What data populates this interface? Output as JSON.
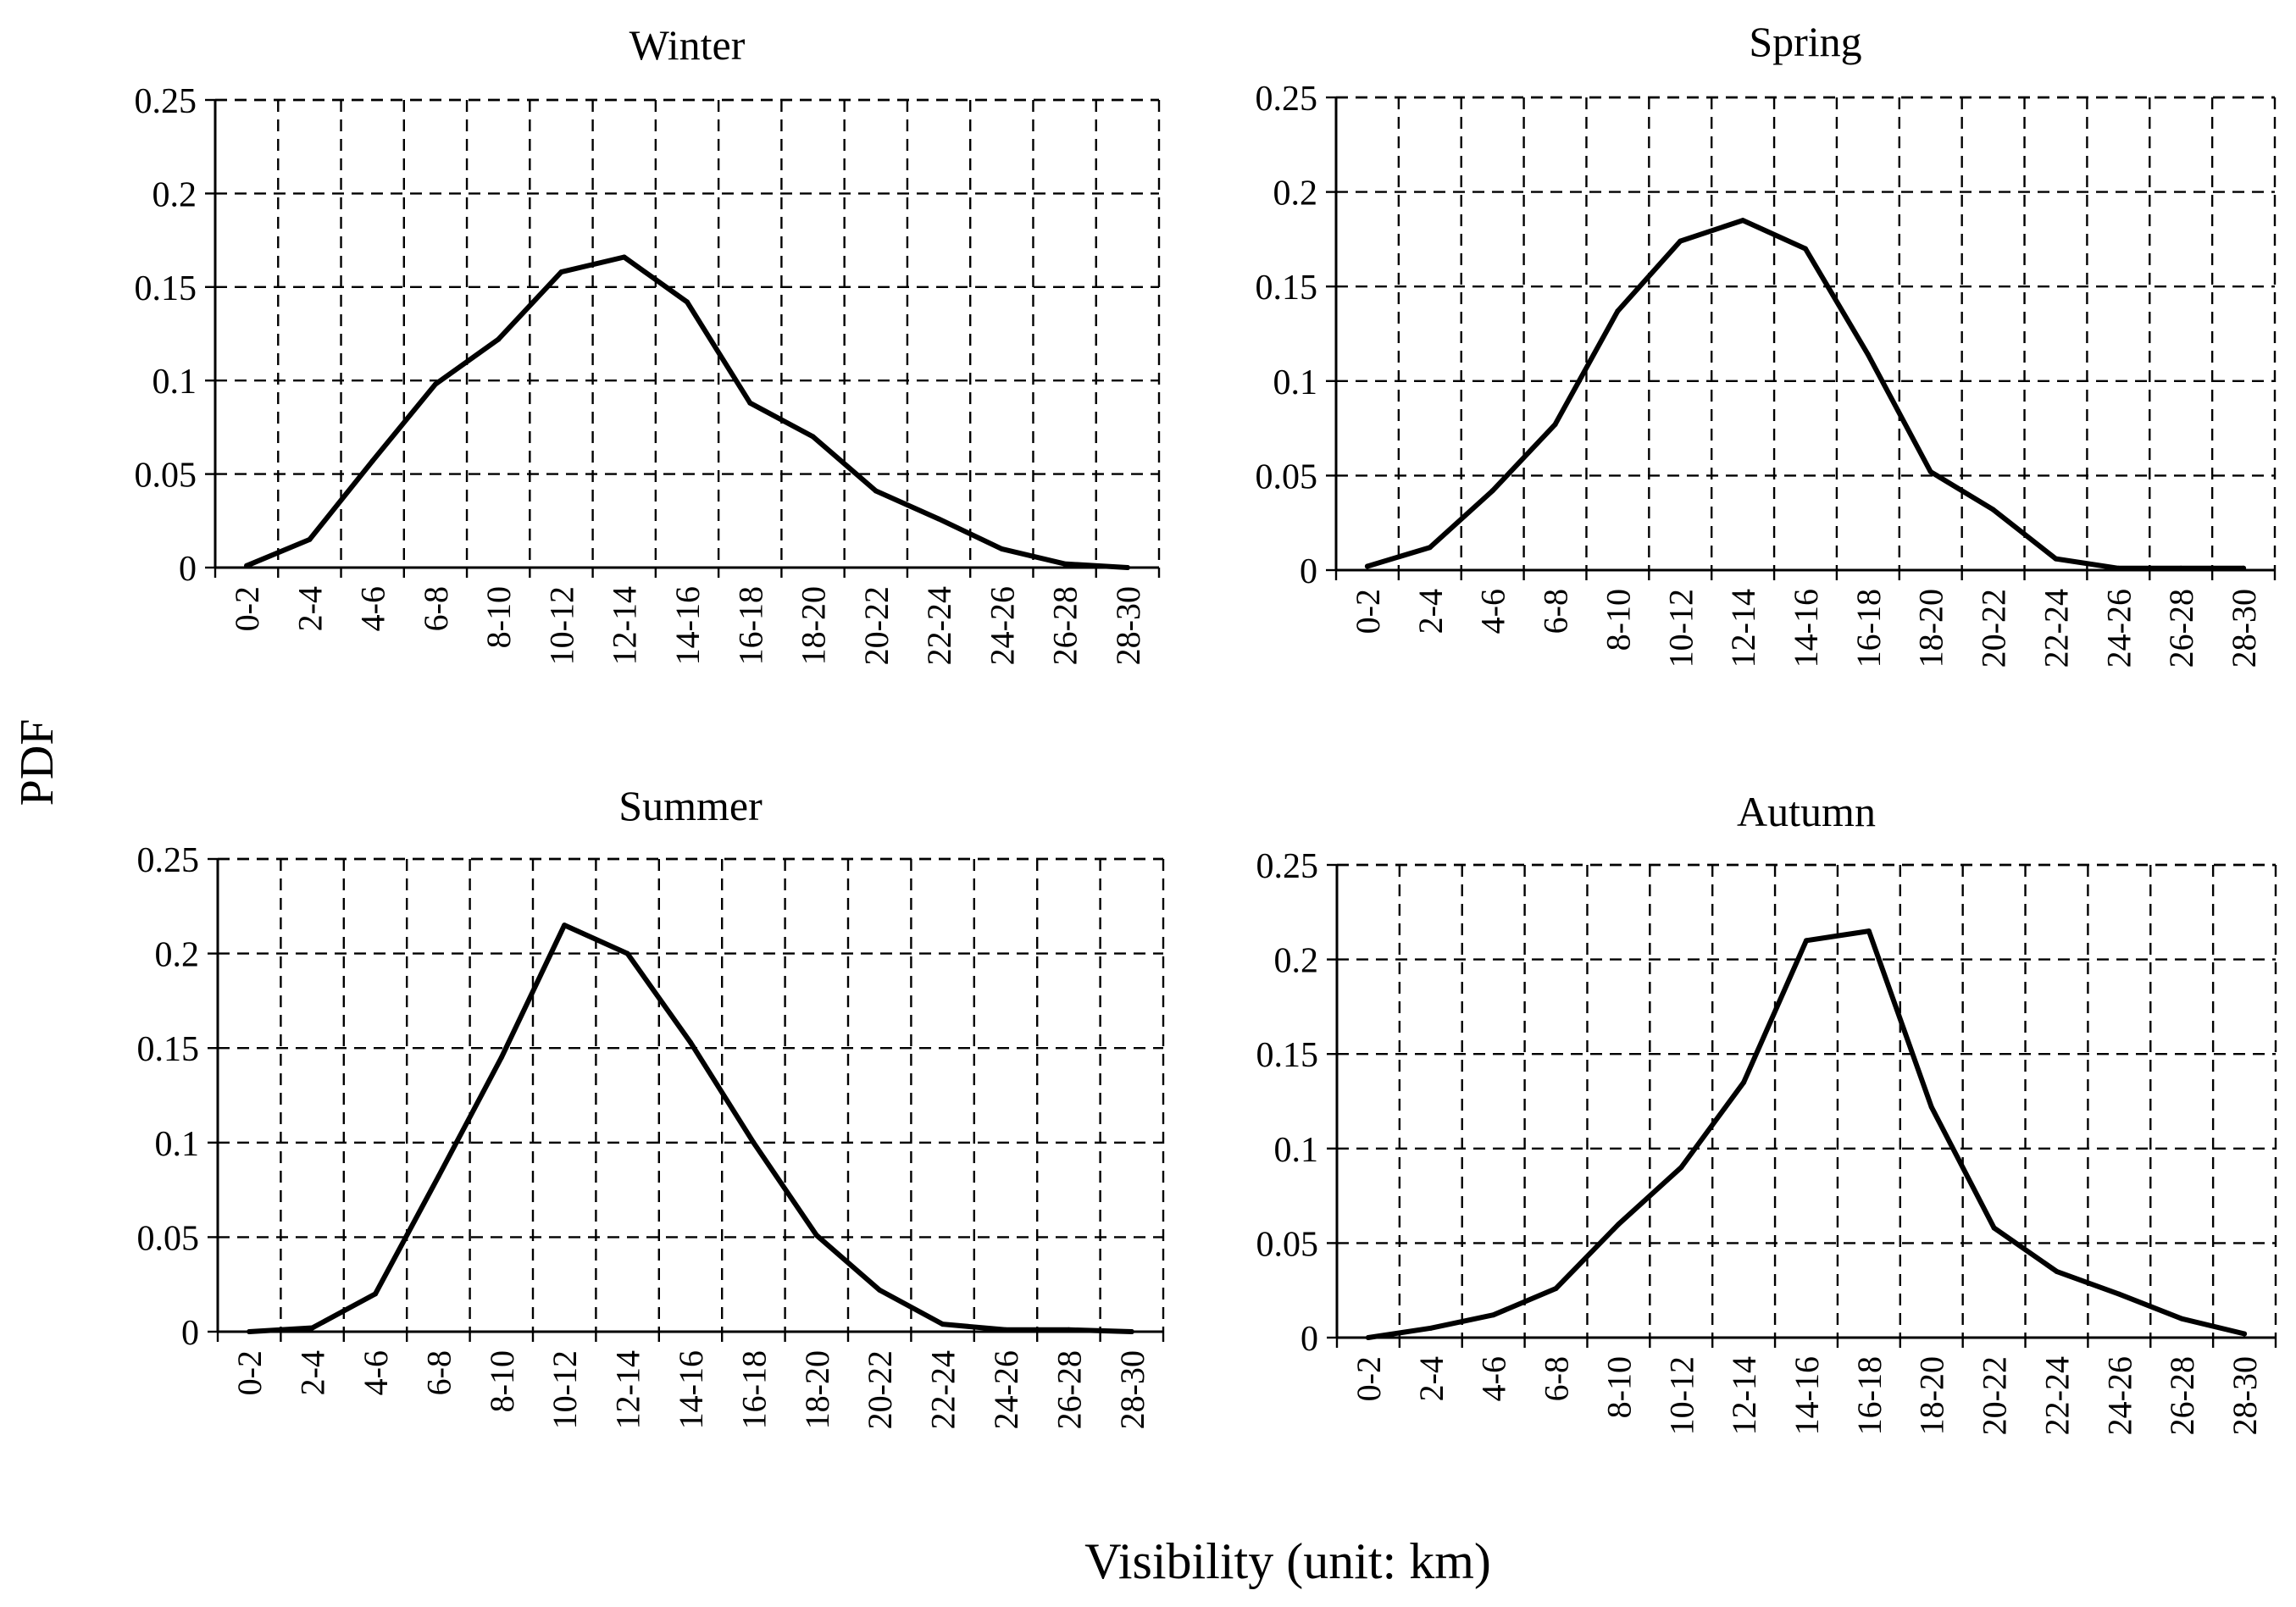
{
  "figure": {
    "ylabel": "PDF",
    "xlabel": "Visibility (unit: km)"
  },
  "chart_data": [
    {
      "type": "line",
      "title": "Winter",
      "categories": [
        "0-2",
        "2-4",
        "4-6",
        "6-8",
        "8-10",
        "10-12",
        "12-14",
        "14-16",
        "16-18",
        "18-20",
        "20-22",
        "22-24",
        "24-26",
        "26-28",
        "28-30"
      ],
      "values": [
        0.001,
        0.015,
        0.057,
        0.098,
        0.122,
        0.158,
        0.166,
        0.142,
        0.088,
        0.07,
        0.041,
        0.026,
        0.01,
        0.002,
        0.0
      ],
      "xlabel": "",
      "ylabel": "",
      "yticks": [
        "0",
        "0.05",
        "0.1",
        "0.15",
        "0.2",
        "0.25"
      ],
      "ylim": [
        0,
        0.25
      ],
      "grid": true
    },
    {
      "type": "line",
      "title": "Spring",
      "categories": [
        "0-2",
        "2-4",
        "4-6",
        "6-8",
        "8-10",
        "10-12",
        "12-14",
        "14-16",
        "16-18",
        "18-20",
        "20-22",
        "22-24",
        "24-26",
        "26-28",
        "28-30"
      ],
      "values": [
        0.002,
        0.012,
        0.042,
        0.077,
        0.137,
        0.174,
        0.185,
        0.17,
        0.114,
        0.052,
        0.032,
        0.006,
        0.001,
        0.001,
        0.001
      ],
      "xlabel": "",
      "ylabel": "",
      "yticks": [
        "0",
        "0.05",
        "0.1",
        "0.15",
        "0.2",
        "0.25"
      ],
      "ylim": [
        0,
        0.25
      ],
      "grid": true
    },
    {
      "type": "line",
      "title": "Summer",
      "categories": [
        "0-2",
        "2-4",
        "4-6",
        "6-8",
        "8-10",
        "10-12",
        "12-14",
        "14-16",
        "16-18",
        "18-20",
        "20-22",
        "22-24",
        "24-26",
        "26-28",
        "28-30"
      ],
      "values": [
        0.0,
        0.002,
        0.02,
        0.082,
        0.145,
        0.215,
        0.2,
        0.153,
        0.1,
        0.051,
        0.022,
        0.004,
        0.001,
        0.001,
        0.0
      ],
      "xlabel": "",
      "ylabel": "",
      "yticks": [
        "0",
        "0.05",
        "0.1",
        "0.15",
        "0.2",
        "0.25"
      ],
      "ylim": [
        0,
        0.25
      ],
      "grid": true
    },
    {
      "type": "line",
      "title": "Autumn",
      "categories": [
        "0-2",
        "2-4",
        "4-6",
        "6-8",
        "8-10",
        "10-12",
        "12-14",
        "14-16",
        "16-18",
        "18-20",
        "20-22",
        "22-24",
        "24-26",
        "26-28",
        "28-30"
      ],
      "values": [
        0.0,
        0.005,
        0.012,
        0.026,
        0.06,
        0.09,
        0.135,
        0.21,
        0.215,
        0.122,
        0.058,
        0.035,
        0.023,
        0.01,
        0.002
      ],
      "xlabel": "",
      "ylabel": "",
      "yticks": [
        "0",
        "0.05",
        "0.1",
        "0.15",
        "0.2",
        "0.25"
      ],
      "ylim": [
        0,
        0.25
      ],
      "grid": true
    }
  ]
}
